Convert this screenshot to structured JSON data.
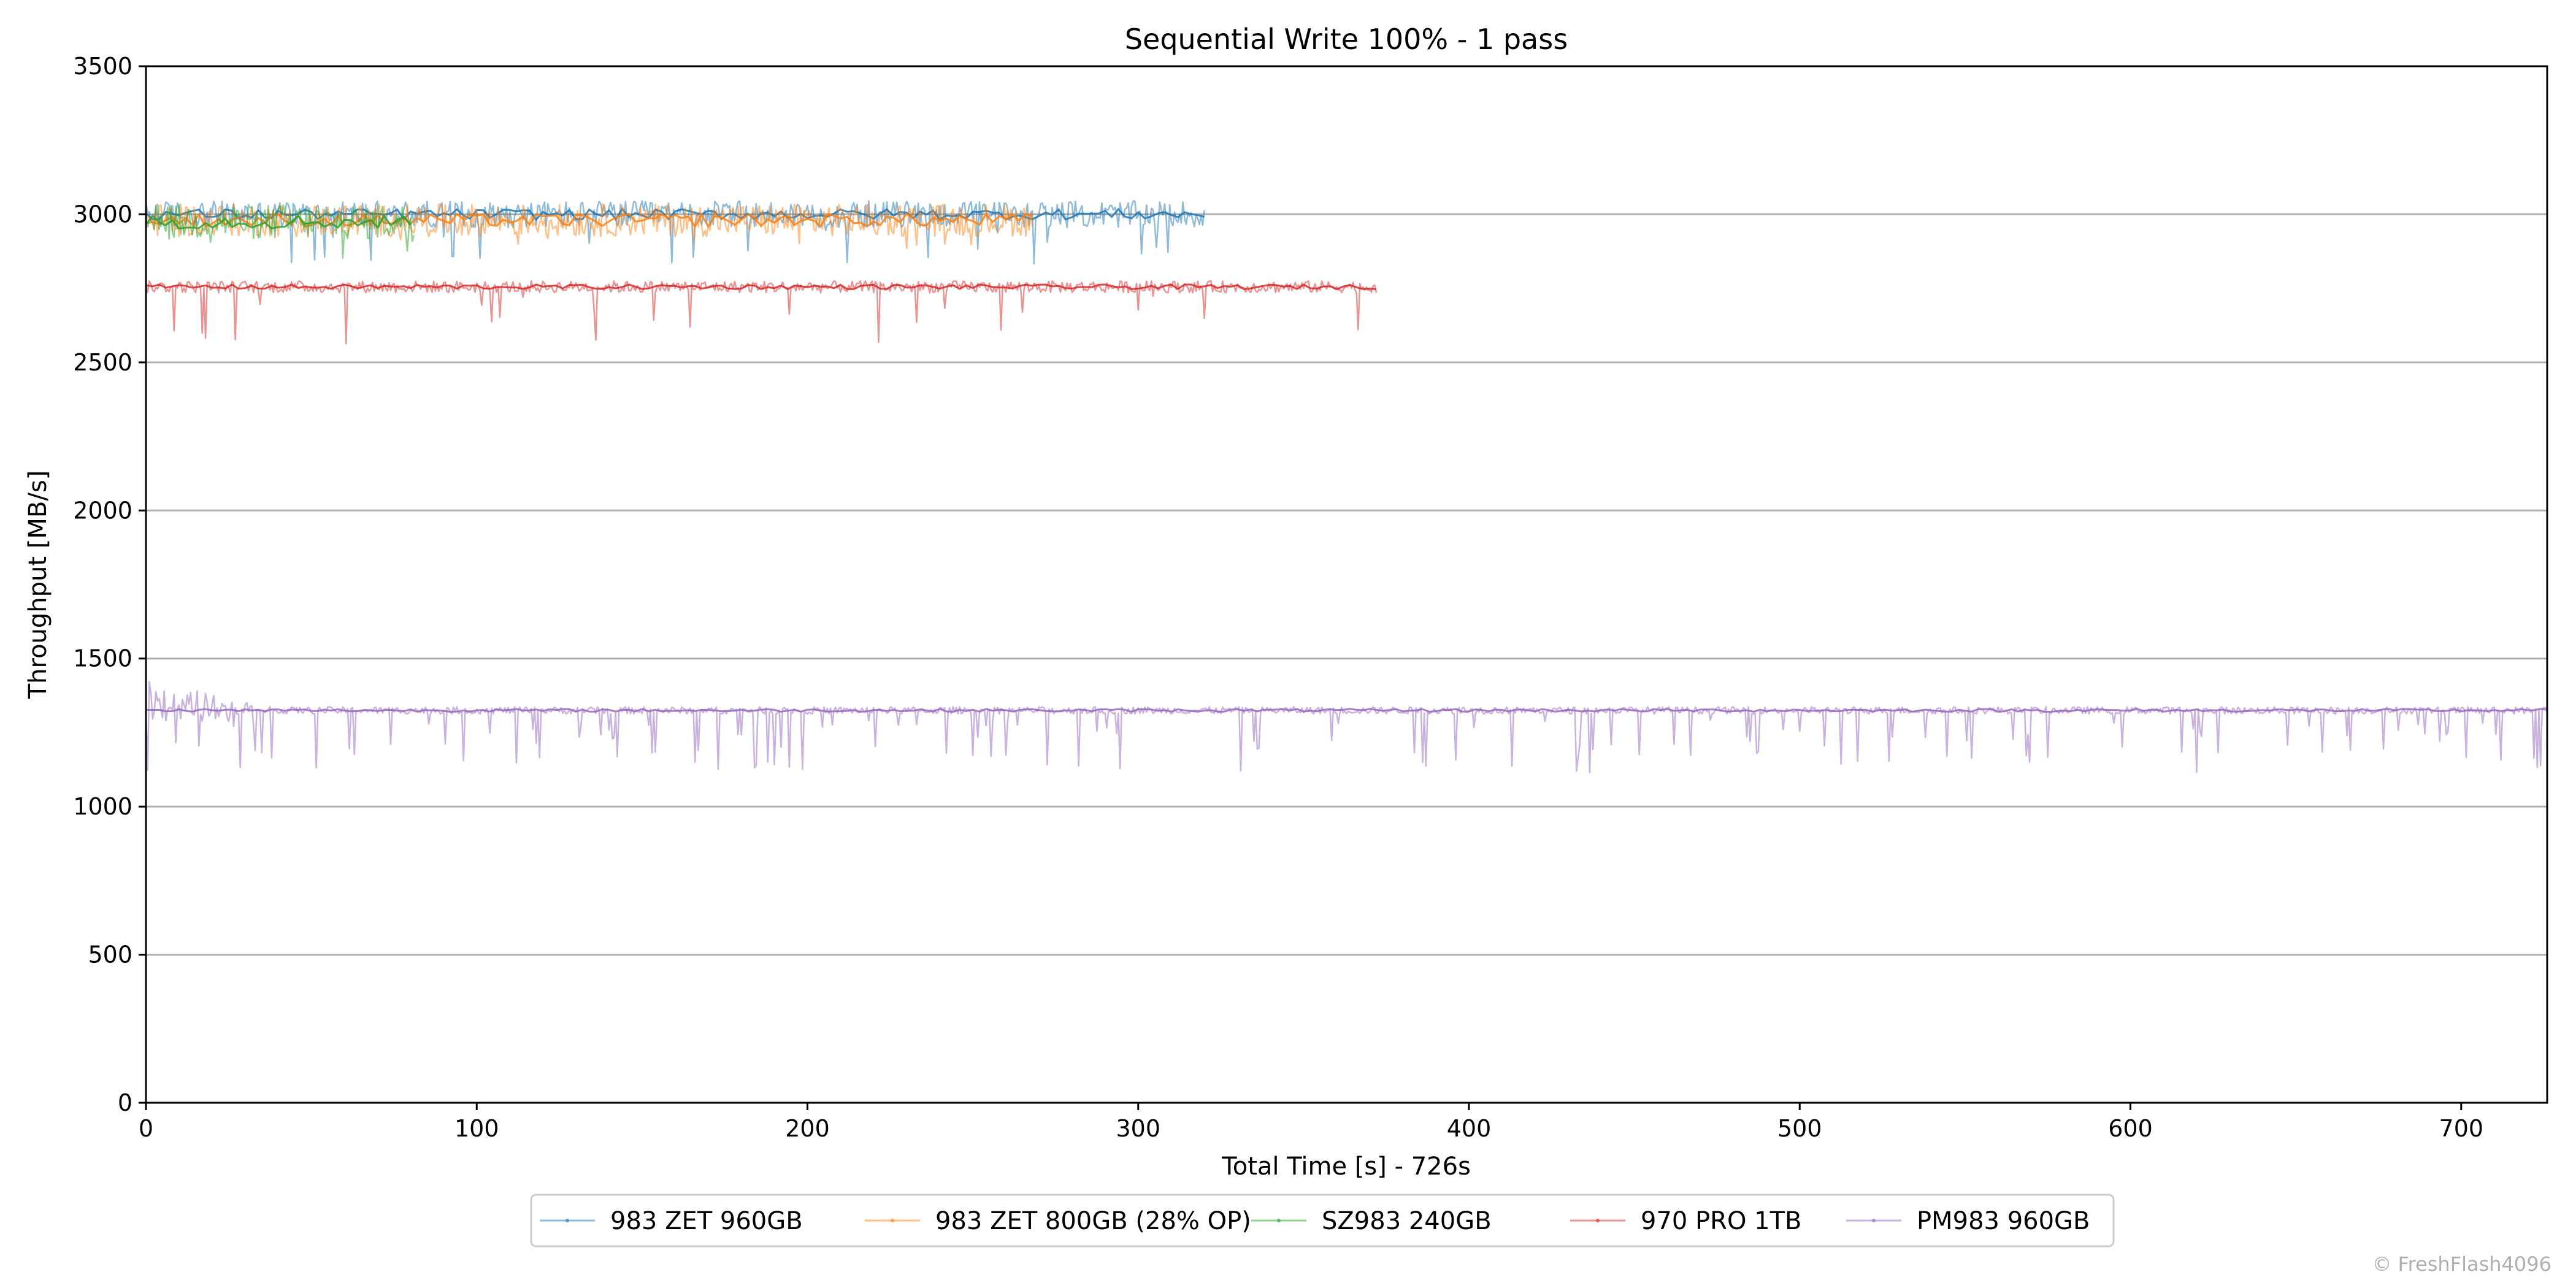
{
  "chart_data": {
    "type": "line",
    "title": "Sequential Write 100% - 1 pass",
    "xlabel": "Total Time [s] - 726s",
    "ylabel": "Throughput [MB/s]",
    "xlim": [
      0,
      726
    ],
    "ylim": [
      0,
      3500
    ],
    "x_ticks": [
      "0",
      "100",
      "200",
      "300",
      "400",
      "500",
      "600",
      "700"
    ],
    "y_ticks": [
      "0",
      "500",
      "1000",
      "1500",
      "2000",
      "2500",
      "3000",
      "3500"
    ],
    "grid": "horizontal",
    "legend_position": "bottom-center",
    "series": [
      {
        "name": "983 ZET 960GB",
        "color": "#1f77b4",
        "x_end": 320,
        "mean": 3000,
        "spread": 45,
        "dip_min": 2830
      },
      {
        "name": "983 ZET 800GB (28% OP)",
        "color": "#ff7f0e",
        "x_end": 268,
        "mean": 2980,
        "spread": 55,
        "dip_min": 2880
      },
      {
        "name": "SZ983 240GB",
        "color": "#2ca02c",
        "x_end": 81,
        "mean": 2975,
        "spread": 60,
        "dip_min": 2840
      },
      {
        "name": "970 PRO 1TB",
        "color": "#d62728",
        "x_end": 372,
        "mean": 2755,
        "spread": 20,
        "dip_min": 2560
      },
      {
        "name": "PM983 960GB",
        "color": "#9467bd",
        "x_end": 726,
        "mean": 1325,
        "spread": 12,
        "dip_min": 1110,
        "initial_peak": 1440
      }
    ]
  },
  "watermark": "© FreshFlash4096"
}
